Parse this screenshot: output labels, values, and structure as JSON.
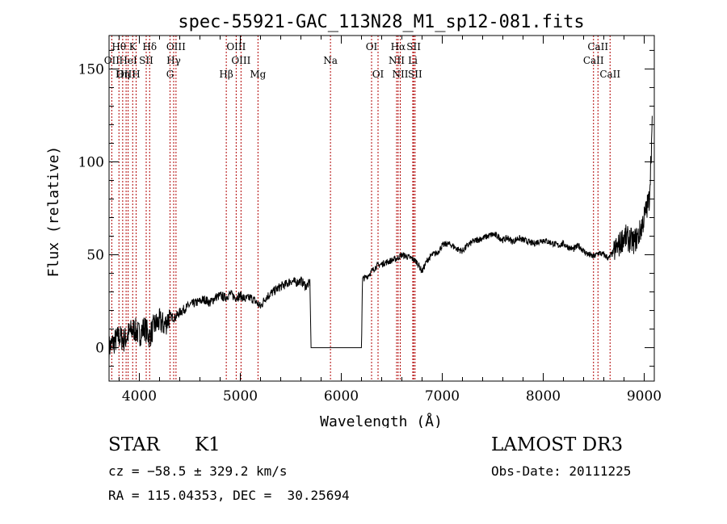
{
  "chart_data": {
    "type": "line",
    "title": "spec-55921-GAC_113N28_M1_sp12-081.fits",
    "xlabel": "Wavelength (Å)",
    "ylabel": "Flux (relative)",
    "xlim": [
      3700,
      9100
    ],
    "ylim": [
      -18,
      168
    ],
    "xticks": [
      4000,
      5000,
      6000,
      7000,
      8000,
      9000
    ],
    "yticks": [
      0,
      50,
      100,
      150
    ],
    "grid": false,
    "series": [
      {
        "color": "#000000",
        "x": [
          3700,
          3750,
          3800,
          3850,
          3900,
          3950,
          4000,
          4050,
          4100,
          4150,
          4200,
          4250,
          4300,
          4350,
          4400,
          4450,
          4500,
          4550,
          4600,
          4650,
          4700,
          4750,
          4800,
          4850,
          4900,
          4950,
          5000,
          5050,
          5100,
          5150,
          5200,
          5250,
          5300,
          5350,
          5400,
          5450,
          5500,
          5550,
          5600,
          5650,
          5690,
          5700,
          5800,
          5900,
          6000,
          6100,
          6200,
          6210,
          6250,
          6300,
          6350,
          6400,
          6450,
          6500,
          6550,
          6600,
          6650,
          6700,
          6750,
          6800,
          6850,
          6900,
          6950,
          7000,
          7050,
          7100,
          7150,
          7200,
          7250,
          7300,
          7350,
          7400,
          7450,
          7500,
          7550,
          7600,
          7650,
          7700,
          7750,
          7800,
          7850,
          7900,
          7950,
          8000,
          8050,
          8100,
          8150,
          8200,
          8250,
          8300,
          8350,
          8400,
          8450,
          8500,
          8550,
          8600,
          8650,
          8700,
          8750,
          8800,
          8850,
          8900,
          8950,
          9000,
          9050,
          9080
        ],
        "y": [
          0,
          3,
          6,
          4,
          8,
          10,
          7,
          11,
          6,
          12,
          14,
          12,
          17,
          16,
          19,
          21,
          23,
          24,
          25,
          26,
          24,
          27,
          28,
          27,
          29,
          27,
          28,
          26,
          27,
          25,
          22,
          27,
          29,
          31,
          33,
          34,
          36,
          35,
          36,
          33,
          35,
          0,
          0,
          0,
          0,
          0,
          0,
          37,
          38,
          41,
          44,
          45,
          46,
          47,
          48,
          50,
          49,
          48,
          46,
          41,
          47,
          50,
          51,
          55,
          56,
          55,
          53,
          52,
          55,
          57,
          58,
          59,
          60,
          61,
          60,
          58,
          59,
          57,
          59,
          58,
          57,
          56,
          57,
          58,
          57,
          56,
          55,
          56,
          54,
          53,
          55,
          52,
          50,
          49,
          51,
          50,
          48,
          52,
          55,
          60,
          58,
          57,
          61,
          70,
          80,
          120
        ]
      }
    ],
    "lines": [
      {
        "label": "Hθ",
        "x": 3798,
        "row": 0
      },
      {
        "label": "OII",
        "x": 3727,
        "row": 1
      },
      {
        "label": "OIII",
        "x": 3869,
        "row": 2
      },
      {
        "label": "K",
        "x": 3934,
        "row": 0
      },
      {
        "label": "Hη",
        "x": 3835,
        "row": 2
      },
      {
        "label": "HeI",
        "x": 3889,
        "row": 1
      },
      {
        "label": "H",
        "x": 3968,
        "row": 2
      },
      {
        "label": "SII",
        "x": 4068,
        "row": 1
      },
      {
        "label": "Hδ",
        "x": 4102,
        "row": 0
      },
      {
        "label": "OIII",
        "x": 4363,
        "row": 0
      },
      {
        "label": "Hγ",
        "x": 4340,
        "row": 1
      },
      {
        "label": "G",
        "x": 4304,
        "row": 2
      },
      {
        "label": "OIII",
        "x": 4959,
        "row": 0
      },
      {
        "label": "OIII",
        "x": 5007,
        "row": 1
      },
      {
        "label": "Hβ",
        "x": 4861,
        "row": 2
      },
      {
        "label": "Mg",
        "x": 5175,
        "row": 2
      },
      {
        "label": "Na",
        "x": 5893,
        "row": 1
      },
      {
        "label": "OI",
        "x": 6300,
        "row": 0
      },
      {
        "label": "OI",
        "x": 6364,
        "row": 2
      },
      {
        "label": "Hα",
        "x": 6563,
        "row": 0
      },
      {
        "label": "NII",
        "x": 6548,
        "row": 1
      },
      {
        "label": "NII",
        "x": 6584,
        "row": 2
      },
      {
        "label": "SII",
        "x": 6717,
        "row": 0
      },
      {
        "label": "Li",
        "x": 6708,
        "row": 1
      },
      {
        "label": "SII",
        "x": 6731,
        "row": 2
      },
      {
        "label": "CaII",
        "x": 8542,
        "row": 0
      },
      {
        "label": "CaII",
        "x": 8498,
        "row": 1
      },
      {
        "label": "CaII",
        "x": 8662,
        "row": 2
      }
    ]
  },
  "info": {
    "class": "STAR",
    "subclass": "K1",
    "survey": "LAMOST DR3",
    "redshift": "cz = −58.5 ± 329.2 km/s",
    "obsdate": "Obs-Date: 20111225",
    "coords": "RA = 115.04353, DEC =  30.25694"
  },
  "colors": {
    "line_marker": "#b00000",
    "spectrum": "#000000",
    "axes": "#000000"
  }
}
